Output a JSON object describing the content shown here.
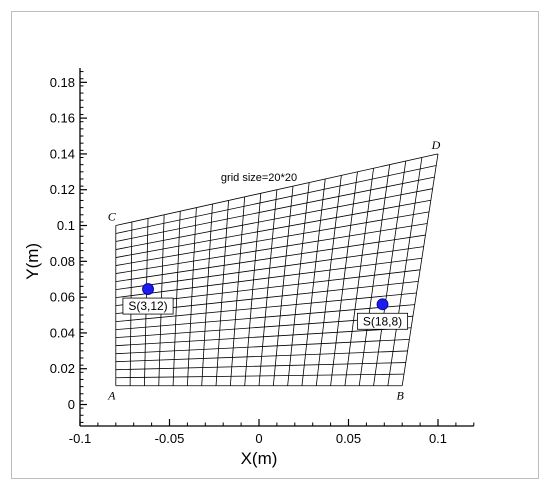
{
  "chart_data": {
    "type": "scatter",
    "xlabel": "X(m)",
    "ylabel": "Y(m)",
    "xlim": [
      -0.1,
      0.12
    ],
    "ylim": [
      -0.012,
      0.188
    ],
    "xticks": [
      -0.1,
      -0.05,
      0,
      0.05,
      0.1
    ],
    "yticks": [
      0,
      0.02,
      0.04,
      0.06,
      0.08,
      0.1,
      0.12,
      0.14,
      0.16,
      0.18
    ],
    "xtick_labels": [
      "-0.1",
      "-0.05",
      "0",
      "0.05",
      "0.1"
    ],
    "ytick_labels": [
      "0",
      "0.02",
      "0.04",
      "0.06",
      "0.08",
      "0.1",
      "0.12",
      "0.14",
      "0.16",
      "0.18"
    ],
    "grid_note": "grid size=20*20",
    "mesh": {
      "divisions": 20,
      "corners": {
        "A": [
          -0.08,
          0.0105
        ],
        "B": [
          0.08,
          0.0105
        ],
        "C": [
          -0.08,
          0.1
        ],
        "D": [
          0.1,
          0.14
        ]
      },
      "corner_labels": [
        "A",
        "B",
        "C",
        "D"
      ]
    },
    "points": [
      {
        "label": "S(3,12)",
        "x": -0.062,
        "y": 0.0645
      },
      {
        "label": "S(18,8)",
        "x": 0.069,
        "y": 0.056
      }
    ],
    "marker_color": "#1c1cf0"
  }
}
